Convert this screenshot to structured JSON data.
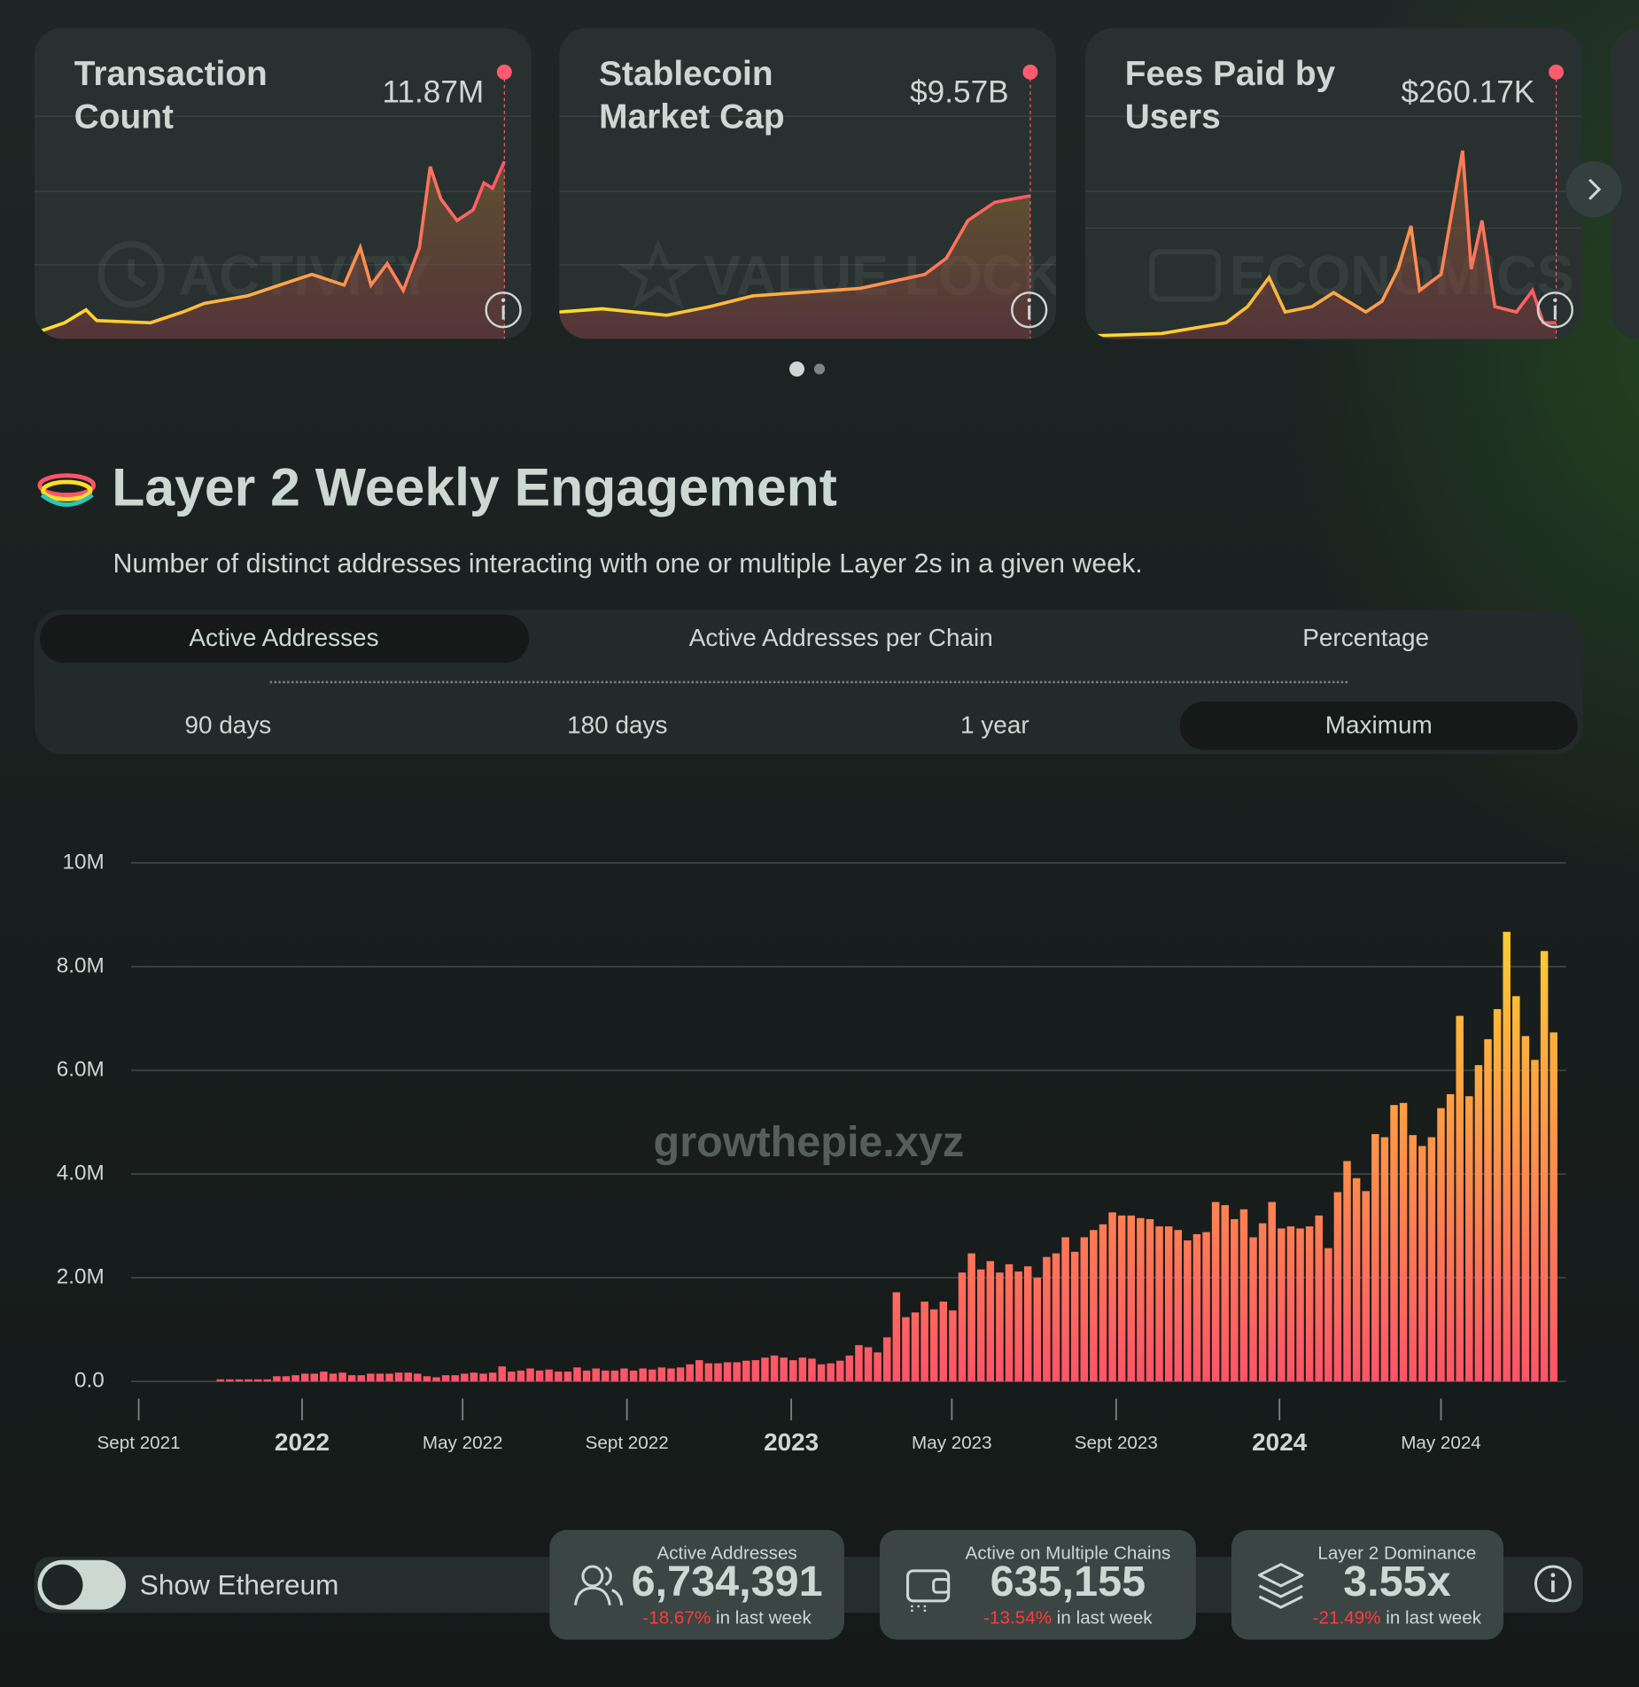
{
  "cards": [
    {
      "title": "Transaction Count",
      "value": "11.87M",
      "watermark": "ACTIVITY"
    },
    {
      "title": "Stablecoin Market Cap",
      "value": "$9.57B",
      "watermark": "VALUE LOCKED"
    },
    {
      "title": "Fees Paid by Users",
      "value": "$260.17K",
      "watermark": "ECONOMICS"
    }
  ],
  "section": {
    "title": "Layer 2 Weekly Engagement",
    "subtitle": "Number of distinct addresses interacting with one or multiple Layer 2s in a given week."
  },
  "tabs": [
    "Active Addresses",
    "Active Addresses per Chain",
    "Percentage"
  ],
  "ranges": [
    "90 days",
    "180 days",
    "1 year",
    "Maximum"
  ],
  "chart_data": {
    "type": "bar",
    "watermark": "growthepie.xyz",
    "categories": [
      null,
      null,
      null,
      null,
      null,
      null,
      null,
      null,
      null,
      null,
      null,
      null,
      null,
      null,
      null,
      null,
      null,
      null,
      null,
      null,
      null,
      null,
      null,
      null,
      null,
      null,
      null,
      null,
      null,
      null,
      null,
      null,
      null,
      null,
      null,
      null,
      null,
      null,
      null,
      null,
      null,
      null,
      null,
      null,
      null,
      null,
      null,
      null,
      null,
      null,
      null,
      null,
      null,
      null,
      null,
      null,
      null,
      null,
      null,
      null,
      null,
      null,
      null,
      null,
      null,
      null,
      null,
      null,
      null,
      null,
      null,
      null,
      null,
      null,
      null,
      null,
      null,
      null,
      null,
      null,
      null,
      null,
      null,
      null,
      null,
      null,
      null,
      null,
      null,
      null,
      null,
      null,
      null,
      null,
      null,
      null,
      null,
      null,
      null,
      null,
      null,
      null,
      null,
      null,
      null,
      null,
      null,
      null,
      null,
      null,
      null,
      null,
      null,
      null,
      null,
      null,
      null,
      null,
      null,
      null,
      null,
      null,
      null,
      null,
      null,
      null,
      null,
      null,
      null,
      null,
      null,
      null,
      null,
      null,
      null,
      null,
      null,
      null,
      null,
      null,
      null,
      null,
      null
    ],
    "values": [
      0.04,
      0.04,
      0.04,
      0.04,
      0.04,
      0.04,
      0.1,
      0.1,
      0.12,
      0.15,
      0.15,
      0.19,
      0.15,
      0.17,
      0.12,
      0.12,
      0.15,
      0.15,
      0.15,
      0.17,
      0.17,
      0.15,
      0.1,
      0.08,
      0.12,
      0.12,
      0.15,
      0.17,
      0.15,
      0.17,
      0.29,
      0.19,
      0.21,
      0.25,
      0.21,
      0.23,
      0.19,
      0.19,
      0.27,
      0.21,
      0.25,
      0.21,
      0.21,
      0.25,
      0.21,
      0.25,
      0.23,
      0.27,
      0.25,
      0.27,
      0.33,
      0.41,
      0.35,
      0.35,
      0.37,
      0.37,
      0.4,
      0.41,
      0.46,
      0.5,
      0.46,
      0.41,
      0.46,
      0.44,
      0.33,
      0.35,
      0.4,
      0.5,
      0.7,
      0.66,
      0.56,
      0.85,
      1.72,
      1.24,
      1.33,
      1.54,
      1.39,
      1.54,
      1.37,
      2.1,
      2.47,
      2.16,
      2.32,
      2.1,
      2.26,
      2.12,
      2.22,
      2.0,
      2.4,
      2.47,
      2.78,
      2.5,
      2.78,
      2.92,
      3.03,
      3.26,
      3.2,
      3.2,
      3.15,
      3.13,
      2.99,
      2.99,
      2.92,
      2.72,
      2.84,
      2.88,
      3.46,
      3.4,
      3.13,
      3.32,
      2.78,
      3.05,
      3.46,
      2.95,
      2.99,
      2.95,
      2.99,
      3.2,
      2.57,
      3.65,
      4.25,
      3.92,
      3.67,
      4.77,
      4.71,
      5.33,
      5.37,
      4.75,
      4.54,
      4.71,
      5.27,
      5.54,
      7.05,
      5.5,
      6.1,
      6.6,
      7.18,
      8.67,
      7.43,
      6.66,
      6.2,
      8.3,
      6.73
    ],
    "colors": [
      "#ffdf27",
      "#fe5468"
    ],
    "ylim": [
      0,
      10
    ],
    "yticks": [
      {
        "value": 0,
        "label": "0.0"
      },
      {
        "value": 2,
        "label": "2.0M"
      },
      {
        "value": 4,
        "label": "4.0M"
      },
      {
        "value": 6,
        "label": "6.0M"
      },
      {
        "value": 8,
        "label": "8.0M"
      },
      {
        "value": 10,
        "label": "10M"
      }
    ],
    "xlim": [
      -9.5,
      143.3
    ],
    "xticks": [
      {
        "value": -8.7,
        "label": "Sept 2021"
      },
      {
        "value": 8.7,
        "label": "2022"
      },
      {
        "value": 25.8,
        "label": "May 2022"
      },
      {
        "value": 43.3,
        "label": "Sept 2022"
      },
      {
        "value": 60.8,
        "label": "2023"
      },
      {
        "value": 77.9,
        "label": "May 2023"
      },
      {
        "value": 95.4,
        "label": "Sept 2023"
      },
      {
        "value": 112.8,
        "label": "2024"
      },
      {
        "value": 130.0,
        "label": "May 2024"
      }
    ],
    "grid": true
  },
  "toggle": {
    "label": "Show Ethereum"
  },
  "stats": [
    {
      "label": "Active Addresses",
      "value": "6,734,391",
      "change": "-18.67%",
      "period": "in last week"
    },
    {
      "label": "Active on Multiple Chains",
      "value": "635,155",
      "change": "-13.54%",
      "period": "in last week"
    },
    {
      "label": "Layer 2 Dominance",
      "value": "3.55x",
      "change": "-21.49%",
      "period": "in last week"
    }
  ]
}
